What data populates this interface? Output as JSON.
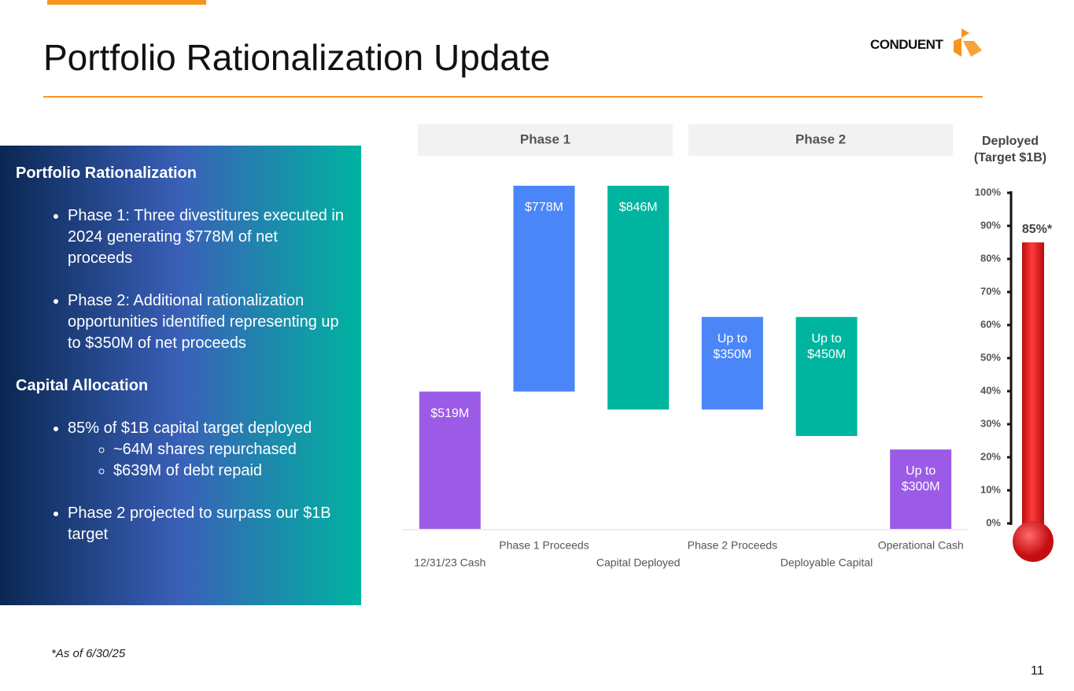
{
  "title": "Portfolio Rationalization Update",
  "logo": "CONDUENT",
  "panel": {
    "sections": [
      {
        "heading": "Portfolio Rationalization",
        "items": [
          {
            "text": "Phase 1: Three divestitures executed in 2024 generating $778M of net proceeds"
          },
          {
            "text": "Phase 2: Additional rationalization opportunities identified representing up to $350M of net proceeds"
          }
        ]
      },
      {
        "heading": "Capital Allocation",
        "items": [
          {
            "text": "85% of $1B capital target deployed",
            "sub": [
              "~64M shares repurchased",
              "$639M of debt repaid"
            ]
          },
          {
            "text": "Phase 2 projected to surpass our $1B target"
          }
        ]
      }
    ]
  },
  "footnote": "*As of 6/30/25",
  "page_number": "11",
  "chart_data": [
    {
      "type": "waterfall",
      "groups": [
        "Phase 1",
        "Phase 2"
      ],
      "categories": [
        "12/31/23 Cash",
        "Phase 1 Proceeds",
        "Capital Deployed",
        "Phase 2 Proceeds",
        "Deployable Capital",
        "Operational Cash"
      ],
      "measure": [
        "total",
        "increase",
        "decrease",
        "increase",
        "decrease",
        "total"
      ],
      "values": [
        519,
        778,
        846,
        350,
        450,
        300
      ],
      "value_labels": [
        "$519M",
        "$778M",
        "$846M",
        "Up to $350M",
        "Up to $450M",
        "Up to $300M"
      ],
      "colors": [
        "#9b5be6",
        "#4a86f7",
        "#00b59f",
        "#4a86f7",
        "#00b59f",
        "#9b5be6"
      ]
    },
    {
      "type": "thermometer",
      "title": "Deployed (Target $1B)",
      "value": 85,
      "value_label": "85%*",
      "color": "#e8151b",
      "ylim": [
        0,
        100
      ],
      "yticks": [
        {
          "value": 0,
          "label": "0%"
        },
        {
          "value": 10,
          "label": "10%"
        },
        {
          "value": 20,
          "label": "20%"
        },
        {
          "value": 30,
          "label": "30%"
        },
        {
          "value": 40,
          "label": "40%"
        },
        {
          "value": 50,
          "label": "50%"
        },
        {
          "value": 60,
          "label": "60%"
        },
        {
          "value": 70,
          "label": "70%"
        },
        {
          "value": 80,
          "label": "80%"
        },
        {
          "value": 90,
          "label": "90%"
        },
        {
          "value": 100,
          "label": "100%"
        }
      ]
    }
  ]
}
